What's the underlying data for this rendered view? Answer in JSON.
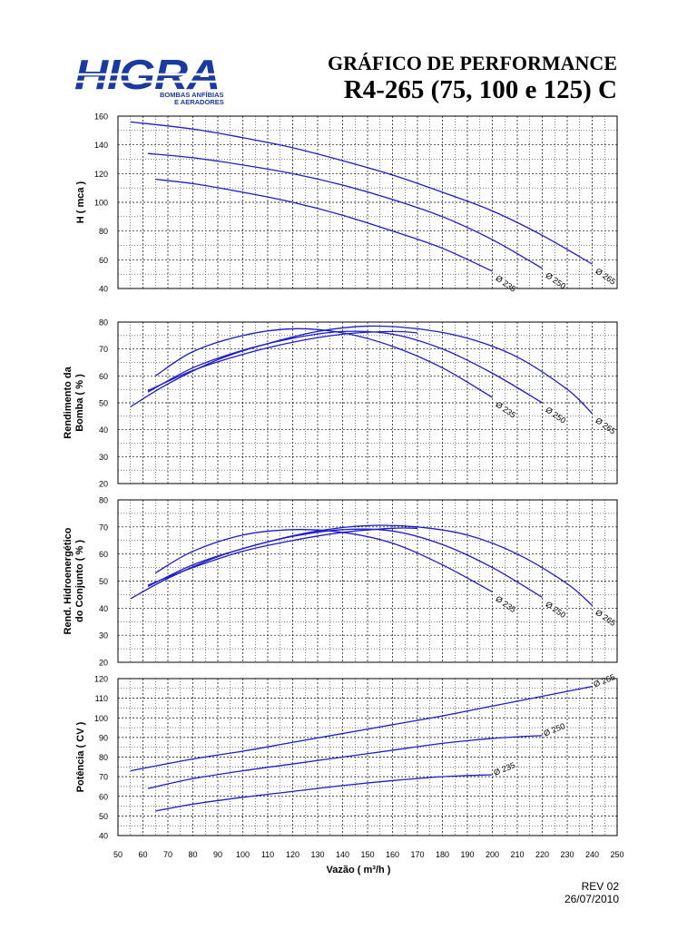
{
  "header": {
    "logo_text": "HIGRA",
    "logo_subtitle_1": "BOMBAS ANFÍBIAS",
    "logo_subtitle_2": "E AERADORES",
    "title_line1": "GRÁFICO DE PERFORMANCE",
    "title_line2": "R4-265 (75, 100 e 125) C"
  },
  "footer": {
    "rev": "REV 02",
    "date": "26/07/2010"
  },
  "colors": {
    "curve": "#1c1cc8",
    "logo_blue": "#1a3aa0",
    "grid": "#000000"
  },
  "chart_data": [
    {
      "type": "line",
      "ylabel": "H ( mca )",
      "xlim": [
        50,
        250
      ],
      "ylim": [
        40,
        160
      ],
      "yticks": [
        40,
        60,
        80,
        100,
        120,
        140,
        160
      ],
      "grid": true,
      "series": [
        {
          "name": "Ø 265",
          "x": [
            55,
            80,
            100,
            120,
            140,
            160,
            180,
            200,
            220,
            240
          ],
          "y": [
            156,
            151,
            145,
            138,
            129,
            119,
            107,
            94,
            77,
            57
          ]
        },
        {
          "name": "Ø 250",
          "x": [
            62,
            80,
            100,
            120,
            140,
            160,
            180,
            200,
            220
          ],
          "y": [
            134,
            131,
            126,
            120,
            112,
            102,
            90,
            74,
            54
          ]
        },
        {
          "name": "Ø 235",
          "x": [
            65,
            80,
            100,
            120,
            140,
            160,
            180,
            200
          ],
          "y": [
            116,
            113,
            107,
            100,
            91,
            80,
            68,
            52
          ]
        }
      ]
    },
    {
      "type": "line",
      "ylabel": "Rendimento da Bomba ( % )",
      "xlim": [
        50,
        250
      ],
      "ylim": [
        20,
        80
      ],
      "yticks": [
        20,
        30,
        40,
        50,
        60,
        70,
        80
      ],
      "grid": true,
      "series": [
        {
          "name": "Ø 265",
          "x": [
            55,
            70,
            90,
            110,
            130,
            150,
            170,
            190,
            210,
            230,
            240
          ],
          "y": [
            48.5,
            57,
            66,
            72,
            76.5,
            78.5,
            77.5,
            74,
            67,
            55,
            46
          ]
        },
        {
          "name": "Ø 250",
          "x": [
            62,
            80,
            100,
            120,
            140,
            160,
            180,
            200,
            220
          ],
          "y": [
            54,
            63,
            69.5,
            74,
            76.5,
            75.5,
            70,
            61,
            50
          ]
        },
        {
          "name": "Ø 235",
          "x": [
            65,
            80,
            100,
            120,
            140,
            160,
            180,
            200
          ],
          "y": [
            60,
            69,
            75,
            77.5,
            76,
            71,
            63,
            52
          ]
        },
        {
          "name": "",
          "x": [
            62,
            80,
            100,
            120,
            140,
            160,
            170
          ],
          "y": [
            54.5,
            62,
            68,
            72.5,
            75.5,
            76.5,
            76
          ]
        }
      ]
    },
    {
      "type": "line",
      "ylabel": "Rend. Hidroenergético do Conjunto ( % )",
      "xlim": [
        50,
        250
      ],
      "ylim": [
        20,
        80
      ],
      "yticks": [
        20,
        30,
        40,
        50,
        60,
        70,
        80
      ],
      "grid": true,
      "series": [
        {
          "name": "Ø 265",
          "x": [
            55,
            70,
            90,
            110,
            130,
            150,
            170,
            190,
            210,
            230,
            240
          ],
          "y": [
            43.5,
            51,
            59,
            64.5,
            68.5,
            70.5,
            70,
            67,
            60,
            49,
            41
          ]
        },
        {
          "name": "Ø 250",
          "x": [
            62,
            80,
            100,
            120,
            140,
            160,
            180,
            200,
            220
          ],
          "y": [
            48,
            56,
            62,
            66.5,
            69,
            68.5,
            63.5,
            55,
            44
          ]
        },
        {
          "name": "Ø 235",
          "x": [
            65,
            80,
            100,
            120,
            140,
            160,
            180,
            200
          ],
          "y": [
            53,
            61,
            67,
            69,
            68,
            64,
            56,
            46
          ]
        },
        {
          "name": "",
          "x": [
            62,
            80,
            100,
            120,
            140,
            160,
            170
          ],
          "y": [
            48.5,
            55,
            61,
            65,
            68,
            69.5,
            69.5
          ]
        }
      ]
    },
    {
      "type": "line",
      "ylabel": "Potência ( CV )",
      "xlabel": "Vazão ( m³/h )",
      "xlim": [
        50,
        250
      ],
      "ylim": [
        40,
        120
      ],
      "yticks": [
        40,
        50,
        60,
        70,
        80,
        90,
        100,
        110,
        120
      ],
      "xticks": [
        50,
        60,
        70,
        80,
        90,
        100,
        110,
        120,
        130,
        140,
        150,
        160,
        170,
        180,
        190,
        200,
        210,
        220,
        230,
        240,
        250
      ],
      "grid": true,
      "series": [
        {
          "name": "Ø 265",
          "x": [
            55,
            80,
            100,
            120,
            140,
            160,
            180,
            200,
            220,
            240
          ],
          "y": [
            73,
            79,
            83,
            87.5,
            92,
            96.5,
            101,
            106,
            111,
            116
          ]
        },
        {
          "name": "Ø 250",
          "x": [
            62,
            80,
            100,
            120,
            140,
            160,
            180,
            200,
            220
          ],
          "y": [
            64,
            69,
            73,
            76.5,
            80,
            83.5,
            87,
            89.5,
            91
          ]
        },
        {
          "name": "Ø 235",
          "x": [
            65,
            80,
            100,
            120,
            140,
            160,
            180,
            200
          ],
          "y": [
            52.5,
            56,
            59.5,
            62.5,
            65.5,
            68,
            70,
            71
          ]
        }
      ]
    }
  ]
}
